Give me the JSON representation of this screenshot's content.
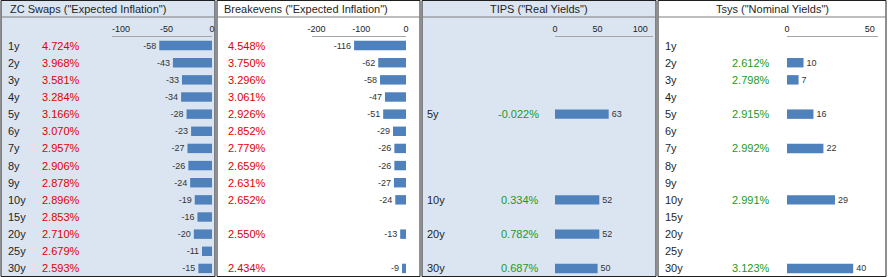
{
  "chart_data": [
    {
      "type": "bar",
      "orientation": "horizontal",
      "title": "ZC Swaps (\"Expected Inflation\")",
      "categories": [
        "1y",
        "2y",
        "3y",
        "4y",
        "5y",
        "6y",
        "7y",
        "8y",
        "9y",
        "10y",
        "15y",
        "20y",
        "25y",
        "30y"
      ],
      "rates": [
        "4.724%",
        "3.968%",
        "3.581%",
        "3.284%",
        "3.166%",
        "3.070%",
        "2.957%",
        "2.906%",
        "2.878%",
        "2.896%",
        "2.853%",
        "2.710%",
        "2.679%",
        "2.593%"
      ],
      "values": [
        -58,
        -43,
        -33,
        -34,
        -28,
        -23,
        -27,
        -26,
        -24,
        -19,
        -16,
        -20,
        -11,
        -15
      ],
      "color": "#4f81bd",
      "xlim": [
        -110,
        0
      ],
      "xticks": [
        -100,
        -50,
        0
      ],
      "data_labels": true,
      "grid": false
    },
    {
      "type": "bar",
      "orientation": "horizontal",
      "title": "Breakevens (\"Expected Inflation\")",
      "categories": [
        null,
        null,
        null,
        null,
        null,
        null,
        null,
        null,
        null,
        null,
        null,
        null,
        null,
        null
      ],
      "rates": [
        "4.548%",
        "3.750%",
        "3.296%",
        "3.061%",
        "2.926%",
        "2.852%",
        "2.779%",
        "2.659%",
        "2.631%",
        "2.652%",
        null,
        "2.550%",
        null,
        "2.434%"
      ],
      "values": [
        -116,
        -62,
        -58,
        -47,
        -51,
        -29,
        -26,
        -26,
        -27,
        -24,
        null,
        -13,
        null,
        -9
      ],
      "color": "#4f81bd",
      "xlim": [
        -210,
        0
      ],
      "xticks": [
        -200,
        -100,
        0
      ],
      "data_labels": true,
      "grid": false
    },
    {
      "type": "bar",
      "orientation": "horizontal",
      "title": "TIPS (\"Real Yields\")",
      "categories": [
        null,
        null,
        null,
        null,
        "5y",
        null,
        null,
        null,
        null,
        "10y",
        null,
        "20y",
        null,
        "30y"
      ],
      "rates": [
        null,
        null,
        null,
        null,
        "-0.022%",
        null,
        null,
        null,
        null,
        "0.334%",
        null,
        "0.782%",
        null,
        "0.687%"
      ],
      "values": [
        null,
        null,
        null,
        null,
        63,
        null,
        null,
        null,
        null,
        52,
        null,
        52,
        null,
        50
      ],
      "color": "#4f81bd",
      "xlim": [
        0,
        115
      ],
      "xticks": [
        0,
        50,
        100
      ],
      "data_labels": true,
      "grid": false
    },
    {
      "type": "bar",
      "orientation": "horizontal",
      "title": "Tsys (\"Nominal Yields\")",
      "categories": [
        "1y",
        "2y",
        "3y",
        "4y",
        "5y",
        "6y",
        "7y",
        "8y",
        "9y",
        "10y",
        "15y",
        "20y",
        "25y",
        "30y"
      ],
      "rates": [
        null,
        "2.612%",
        "2.798%",
        null,
        "2.915%",
        null,
        "2.992%",
        null,
        null,
        "2.991%",
        null,
        null,
        null,
        "3.123%"
      ],
      "values": [
        null,
        10,
        7,
        null,
        16,
        null,
        22,
        null,
        null,
        29,
        null,
        null,
        null,
        40
      ],
      "color": "#4f81bd",
      "xlim": [
        0,
        55
      ],
      "xticks": [
        0,
        50
      ],
      "data_labels": true,
      "grid": false
    }
  ]
}
